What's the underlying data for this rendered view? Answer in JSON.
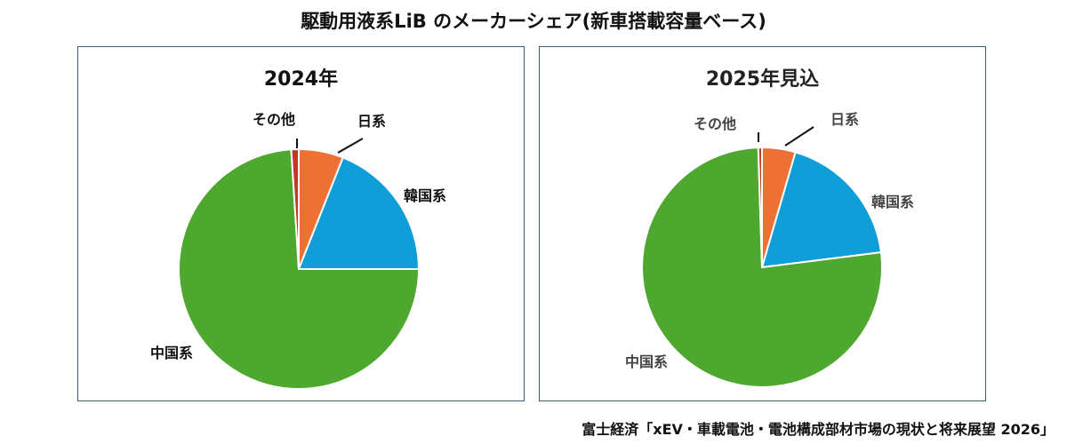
{
  "title": "駆動用液系LiB のメーカーシェア(新車搭載容量ベース)",
  "source": "富士経済「xEV・車載電池・電池構成部材市場の現状と将来展望 2026」",
  "chart_data": [
    {
      "type": "pie",
      "title": "2024年",
      "start_angle_deg": 0,
      "direction": "clockwise",
      "categories": [
        "日系",
        "韓国系",
        "中国系",
        "その他"
      ],
      "values": [
        6,
        19,
        74,
        1
      ],
      "colors": [
        "#ed7035",
        "#119ed8",
        "#4ea72e",
        "#c0392b"
      ]
    },
    {
      "type": "pie",
      "title": "2025年見込",
      "start_angle_deg": 0,
      "direction": "clockwise",
      "categories": [
        "日系",
        "韓国系",
        "中国系",
        "その他"
      ],
      "values": [
        4.5,
        18.5,
        76.5,
        0.5
      ],
      "colors": [
        "#ed7035",
        "#119ed8",
        "#4ea72e",
        "#c0392b"
      ]
    }
  ]
}
